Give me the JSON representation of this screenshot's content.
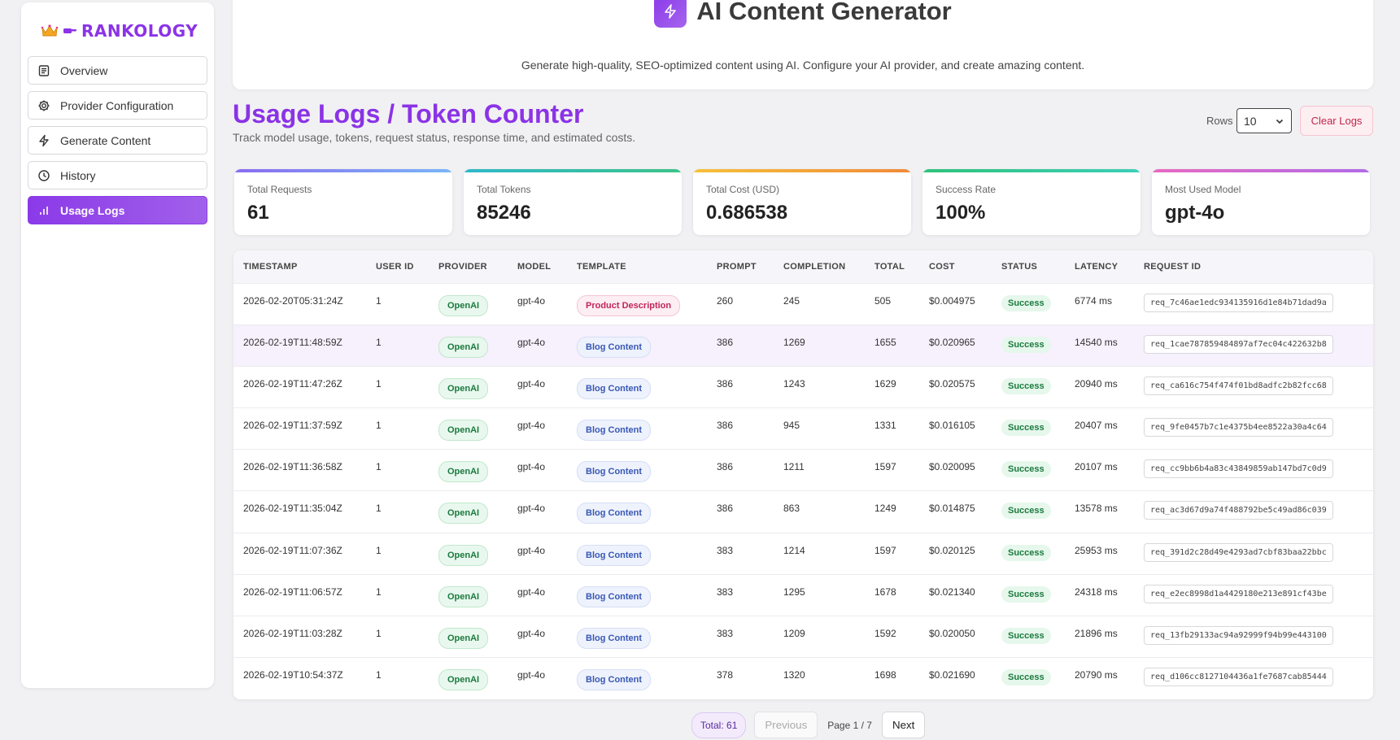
{
  "brand": {
    "name": "RANKOLOGY"
  },
  "sidebar": {
    "items": [
      {
        "label": "Overview",
        "icon": "document-icon",
        "active": false
      },
      {
        "label": "Provider Configuration",
        "icon": "gear-icon",
        "active": false
      },
      {
        "label": "Generate Content",
        "icon": "bolt-icon",
        "active": false
      },
      {
        "label": "History",
        "icon": "clock-icon",
        "active": false
      },
      {
        "label": "Usage Logs",
        "icon": "bar-chart-icon",
        "active": true
      }
    ]
  },
  "header": {
    "title": "AI Content Generator",
    "subtitle": "Generate high-quality, SEO-optimized content using AI. Configure your AI provider, and create amazing content."
  },
  "section": {
    "title": "Usage Logs / Token Counter",
    "subtitle": "Track model usage, tokens, request status, response time, and estimated costs.",
    "rows_label": "Rows",
    "rows_value": "10",
    "clear_label": "Clear Logs"
  },
  "stats": [
    {
      "label": "Total Requests",
      "value": "61",
      "color": "#7aa6f5"
    },
    {
      "label": "Total Tokens",
      "value": "85246",
      "color": "#3cc38a"
    },
    {
      "label": "Total Cost (USD)",
      "value": "0.686538",
      "color": "#f4a33a"
    },
    {
      "label": "Success Rate",
      "value": "100%",
      "color": "#3cc3a0"
    },
    {
      "label": "Most Used Model",
      "value": "gpt-4o",
      "color": "#d46ae0"
    }
  ],
  "table": {
    "headers": [
      "TIMESTAMP",
      "USER ID",
      "PROVIDER",
      "MODEL",
      "TEMPLATE",
      "PROMPT",
      "COMPLETION",
      "TOTAL",
      "COST",
      "STATUS",
      "LATENCY",
      "REQUEST ID"
    ],
    "rows": [
      {
        "timestamp": "2026-02-20T05:31:24Z",
        "user_id": "1",
        "provider": "OpenAI",
        "model": "gpt-4o",
        "template": "Product Description",
        "prompt": "260",
        "completion": "245",
        "total": "505",
        "cost": "$0.004975",
        "status": "Success",
        "latency": "6774 ms",
        "request_id": "req_7c46ae1edc934135916d1e84b71dad9a"
      },
      {
        "timestamp": "2026-02-19T11:48:59Z",
        "user_id": "1",
        "provider": "OpenAI",
        "model": "gpt-4o",
        "template": "Blog Content",
        "prompt": "386",
        "completion": "1269",
        "total": "1655",
        "cost": "$0.020965",
        "status": "Success",
        "latency": "14540 ms",
        "request_id": "req_1cae787859484897af7ec04c422632b8"
      },
      {
        "timestamp": "2026-02-19T11:47:26Z",
        "user_id": "1",
        "provider": "OpenAI",
        "model": "gpt-4o",
        "template": "Blog Content",
        "prompt": "386",
        "completion": "1243",
        "total": "1629",
        "cost": "$0.020575",
        "status": "Success",
        "latency": "20940 ms",
        "request_id": "req_ca616c754f474f01bd8adfc2b82fcc68"
      },
      {
        "timestamp": "2026-02-19T11:37:59Z",
        "user_id": "1",
        "provider": "OpenAI",
        "model": "gpt-4o",
        "template": "Blog Content",
        "prompt": "386",
        "completion": "945",
        "total": "1331",
        "cost": "$0.016105",
        "status": "Success",
        "latency": "20407 ms",
        "request_id": "req_9fe0457b7c1e4375b4ee8522a30a4c64"
      },
      {
        "timestamp": "2026-02-19T11:36:58Z",
        "user_id": "1",
        "provider": "OpenAI",
        "model": "gpt-4o",
        "template": "Blog Content",
        "prompt": "386",
        "completion": "1211",
        "total": "1597",
        "cost": "$0.020095",
        "status": "Success",
        "latency": "20107 ms",
        "request_id": "req_cc9bb6b4a83c43849859ab147bd7c0d9"
      },
      {
        "timestamp": "2026-02-19T11:35:04Z",
        "user_id": "1",
        "provider": "OpenAI",
        "model": "gpt-4o",
        "template": "Blog Content",
        "prompt": "386",
        "completion": "863",
        "total": "1249",
        "cost": "$0.014875",
        "status": "Success",
        "latency": "13578 ms",
        "request_id": "req_ac3d67d9a74f488792be5c49ad86c039"
      },
      {
        "timestamp": "2026-02-19T11:07:36Z",
        "user_id": "1",
        "provider": "OpenAI",
        "model": "gpt-4o",
        "template": "Blog Content",
        "prompt": "383",
        "completion": "1214",
        "total": "1597",
        "cost": "$0.020125",
        "status": "Success",
        "latency": "25953 ms",
        "request_id": "req_391d2c28d49e4293ad7cbf83baa22bbc"
      },
      {
        "timestamp": "2026-02-19T11:06:57Z",
        "user_id": "1",
        "provider": "OpenAI",
        "model": "gpt-4o",
        "template": "Blog Content",
        "prompt": "383",
        "completion": "1295",
        "total": "1678",
        "cost": "$0.021340",
        "status": "Success",
        "latency": "24318 ms",
        "request_id": "req_e2ec8998d1a4429180e213e891cf43be"
      },
      {
        "timestamp": "2026-02-19T11:03:28Z",
        "user_id": "1",
        "provider": "OpenAI",
        "model": "gpt-4o",
        "template": "Blog Content",
        "prompt": "383",
        "completion": "1209",
        "total": "1592",
        "cost": "$0.020050",
        "status": "Success",
        "latency": "21896 ms",
        "request_id": "req_13fb29133ac94a92999f94b99e443100"
      },
      {
        "timestamp": "2026-02-19T10:54:37Z",
        "user_id": "1",
        "provider": "OpenAI",
        "model": "gpt-4o",
        "template": "Blog Content",
        "prompt": "378",
        "completion": "1320",
        "total": "1698",
        "cost": "$0.021690",
        "status": "Success",
        "latency": "20790 ms",
        "request_id": "req_d106cc8127104436a1fe7687cab85444"
      }
    ]
  },
  "pagination": {
    "total_label": "Total: 61",
    "previous_label": "Previous",
    "page_label": "Page 1 / 7",
    "next_label": "Next"
  }
}
